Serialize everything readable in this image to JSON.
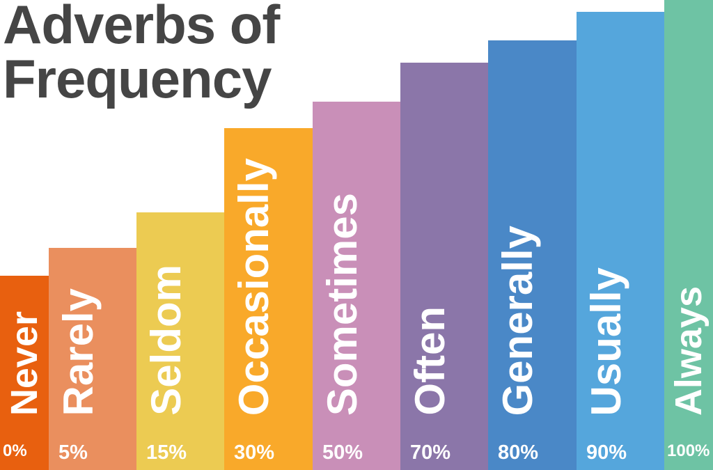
{
  "chart_data": {
    "type": "bar",
    "title": "Adverbs of frequency",
    "title_lines": [
      "Adverbs of",
      "Frequency"
    ],
    "categories": [
      "Never",
      "Rarely",
      "Seldom",
      "Occasionally",
      "Sometimes",
      "Often",
      "Generally",
      "Usually",
      "Always"
    ],
    "values": [
      0,
      5,
      15,
      30,
      50,
      70,
      80,
      90,
      100
    ],
    "value_labels": [
      "0%",
      "5%",
      "15%",
      "30%",
      "50%",
      "70%",
      "80%",
      "90%",
      "100%"
    ],
    "colors": [
      "#e8600f",
      "#ea8f5e",
      "#eccb52",
      "#f9a92a",
      "#c98fb8",
      "#8b76a9",
      "#4a88c7",
      "#55a6dc",
      "#6ec3a4"
    ],
    "xlabel": "",
    "ylabel": "",
    "ylim": [
      0,
      100
    ],
    "grid": false
  }
}
